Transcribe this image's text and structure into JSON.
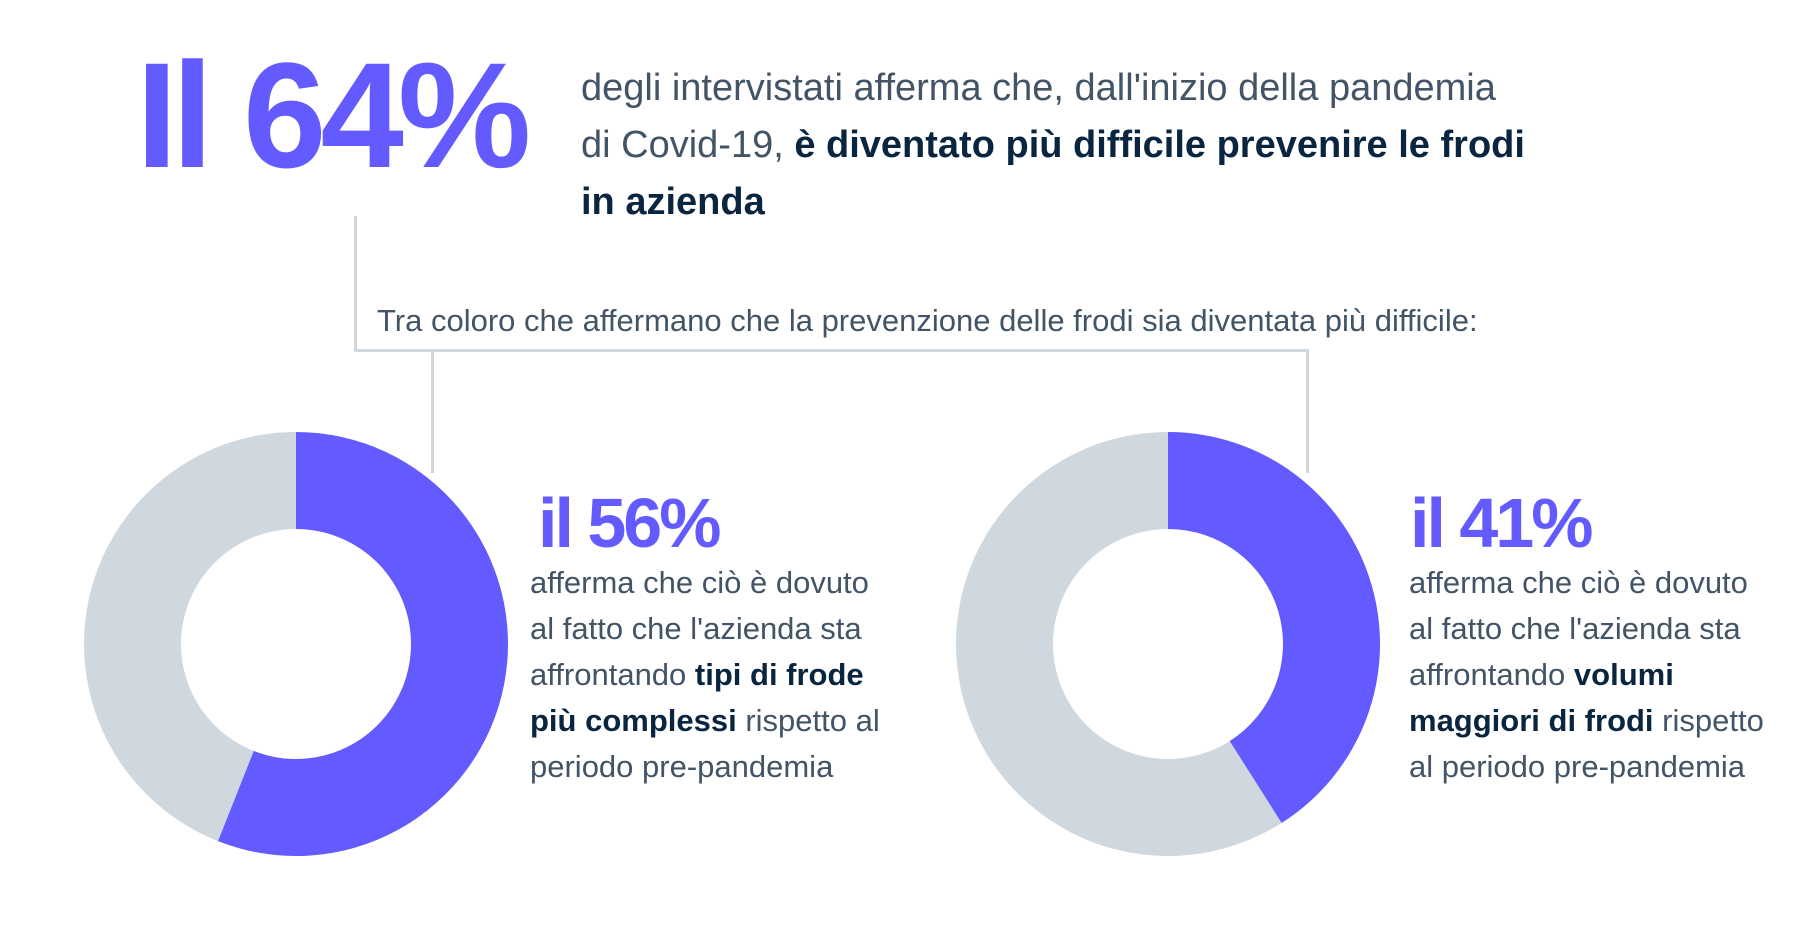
{
  "headline": {
    "stat": "Il 64%",
    "text_line1": "degli intervistati afferma che, dall'inizio della pandemia",
    "text_line2_plain": "di Covid-19, ",
    "text_line2_bold": "è diventato più difficile prevenire le frodi",
    "text_line3_bold": "in azienda"
  },
  "subtitle": "Tra coloro che affermano che la prevenzione delle frodi sia diventata più difficile:",
  "colors": {
    "accent": "#635bff",
    "track": "#cfd7df",
    "dark_text": "#0a2540",
    "body_text": "#425466"
  },
  "chart_data": [
    {
      "type": "pie",
      "donut": true,
      "categories": [
        "",
        ""
      ],
      "values": [
        56,
        44
      ],
      "colors": [
        "#635bff",
        "#cfd7df"
      ],
      "data_label": "il 56%"
    },
    {
      "type": "pie",
      "donut": true,
      "categories": [
        "",
        ""
      ],
      "values": [
        41,
        59
      ],
      "colors": [
        "#635bff",
        "#cfd7df"
      ],
      "data_label": "il 41%"
    }
  ],
  "left_panel": {
    "stat": "il 56%",
    "line1": "afferma che ciò è dovuto",
    "line2": "al fatto che l'azienda sta",
    "line3_plain": "affrontando ",
    "line3_bold": "tipi di frode",
    "line4_bold": "più complessi",
    "line4_plain": " rispetto al",
    "line5": "periodo pre-pandemia"
  },
  "right_panel": {
    "stat": "il 41%",
    "line1": "afferma che ciò è dovuto",
    "line2": "al fatto che l'azienda sta",
    "line3_plain": "affrontando ",
    "line3_bold": "volumi",
    "line4_bold": "maggiori di frodi",
    "line4_plain": " rispetto",
    "line5": "al periodo pre-pandemia"
  }
}
